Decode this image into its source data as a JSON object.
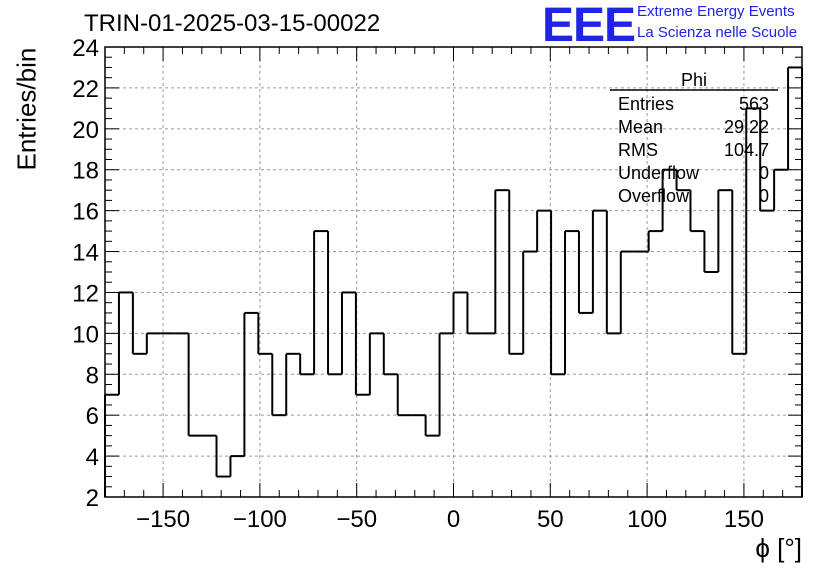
{
  "header": {
    "title": "TRIN-01-2025-03-15-00022",
    "logo_text": "EEE",
    "logo_line1": "Extreme Energy Events",
    "logo_line2": "La Scienza nelle Scuole"
  },
  "colors": {
    "logo": "#1f24e6",
    "hist": "#000000",
    "grid": "#9a9a9a"
  },
  "stats_box": {
    "name": "Phi",
    "rows": [
      {
        "label": "Entries",
        "value": "563"
      },
      {
        "label": "Mean",
        "value": "29.22"
      },
      {
        "label": "RMS",
        "value": "104.7"
      },
      {
        "label": "Underflow",
        "value": "0"
      },
      {
        "label": "Overflow",
        "value": "0"
      }
    ]
  },
  "chart_data": {
    "type": "histogram",
    "title": "TRIN-01-2025-03-15-00022",
    "xlabel": "ϕ [°]",
    "ylabel": "Entries/bin",
    "xlim": [
      -180,
      180
    ],
    "ylim": [
      2,
      24
    ],
    "grid": true,
    "bin_width": 7.2,
    "x_ticks": [
      -150,
      -100,
      -50,
      0,
      50,
      100,
      150
    ],
    "y_ticks": [
      2,
      4,
      6,
      8,
      10,
      12,
      14,
      16,
      18,
      20,
      22,
      24
    ],
    "bin_edges_start": -180,
    "values": [
      7,
      12,
      9,
      10,
      10,
      10,
      5,
      5,
      3,
      4,
      11,
      9,
      6,
      9,
      8,
      15,
      8,
      12,
      7,
      10,
      8,
      6,
      6,
      5,
      10,
      12,
      10,
      10,
      17,
      9,
      14,
      16,
      8,
      15,
      11,
      16,
      10,
      14,
      14,
      15,
      18,
      17,
      15,
      13,
      17,
      9,
      21,
      16,
      18,
      23
    ]
  }
}
